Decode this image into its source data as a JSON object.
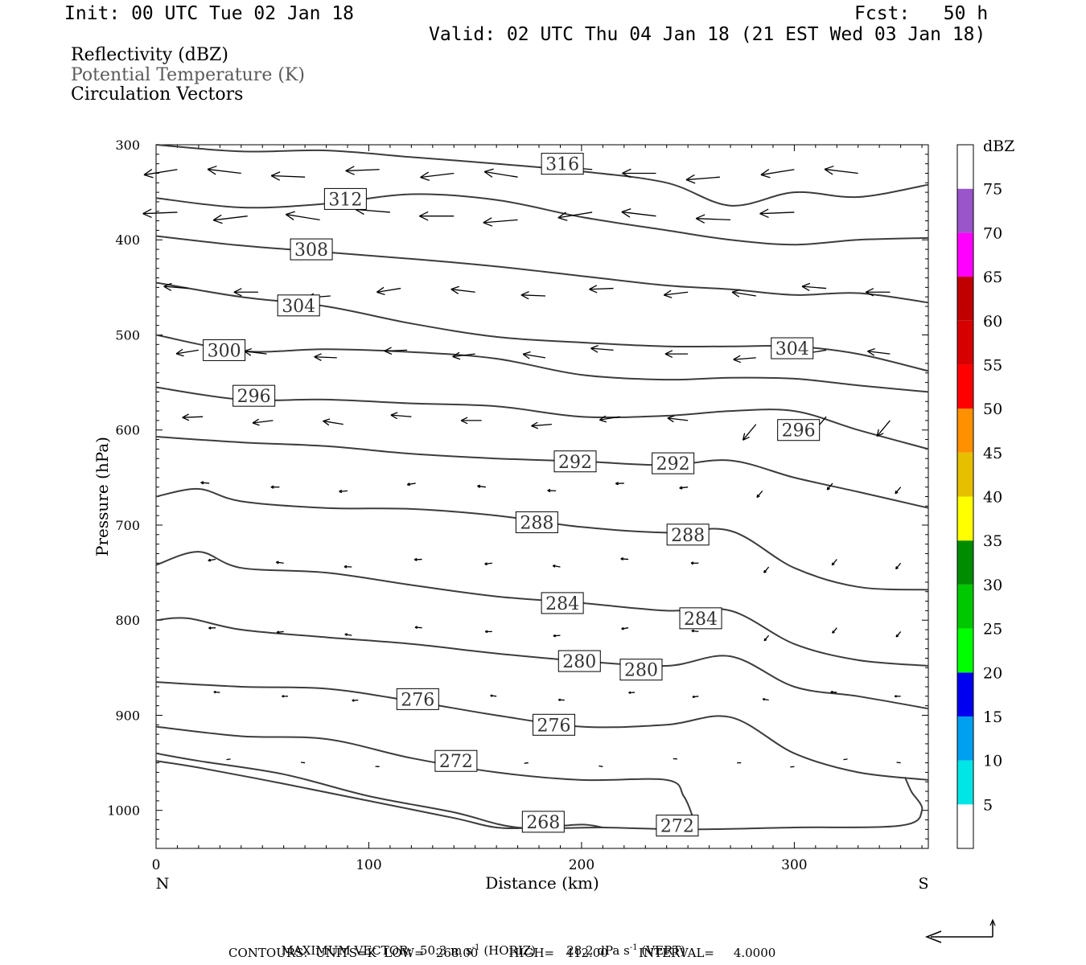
{
  "header": {
    "init": "Init: 00 UTC Tue 02 Jan 18",
    "fcst": "Fcst:   50 h",
    "valid": "Valid: 02 UTC Thu 04 Jan 18 (21 EST Wed 03 Jan 18)"
  },
  "fields": [
    "Reflectivity (dBZ)",
    "Potential Temperature (K)",
    "Circulation Vectors"
  ],
  "colors": {
    "contour": "#3c3c3c",
    "potential_temperature_text": "#5a5a5a"
  },
  "chart_data": {
    "type": "line",
    "xlabel": "Distance (km)",
    "ylabel": "Pressure (hPa)",
    "xlim": [
      0,
      363
    ],
    "ylim": [
      1040,
      300
    ],
    "x_ticks": [
      0,
      100,
      200,
      300
    ],
    "y_ticks": [
      300,
      400,
      500,
      600,
      700,
      800,
      900,
      1000
    ],
    "end_labels": {
      "left": "N",
      "right": "S"
    },
    "grid": false,
    "isentropes": [
      {
        "theta": 316,
        "x": [
          0,
          40,
          80,
          120,
          160,
          200,
          240,
          270,
          300,
          330,
          363
        ],
        "y": [
          300,
          307,
          306,
          313,
          320,
          328,
          340,
          364,
          350,
          355,
          342
        ],
        "labels": [
          {
            "x": 191,
            "y": 320
          }
        ]
      },
      {
        "theta": 312,
        "x": [
          0,
          40,
          80,
          120,
          160,
          200,
          240,
          270,
          300,
          330,
          363
        ],
        "y": [
          356,
          366,
          362,
          352,
          358,
          376,
          390,
          400,
          405,
          400,
          398
        ],
        "labels": [
          {
            "x": 89,
            "y": 357
          }
        ]
      },
      {
        "theta": 308,
        "x": [
          0,
          40,
          80,
          120,
          160,
          200,
          240,
          270,
          300,
          330,
          363
        ],
        "y": [
          396,
          406,
          413,
          420,
          428,
          438,
          448,
          452,
          458,
          456,
          466
        ],
        "labels": [
          {
            "x": 73,
            "y": 410
          }
        ]
      },
      {
        "theta": 304,
        "x": [
          0,
          40,
          80,
          120,
          160,
          200,
          240,
          270,
          300,
          330,
          363
        ],
        "y": [
          445,
          460,
          470,
          488,
          502,
          508,
          512,
          512,
          512,
          520,
          538
        ],
        "labels": [
          {
            "x": 67,
            "y": 469
          },
          {
            "x": 299,
            "y": 514
          }
        ]
      },
      {
        "theta": 300,
        "x": [
          0,
          40,
          80,
          120,
          160,
          200,
          240,
          270,
          300,
          330,
          363
        ],
        "y": [
          500,
          517,
          515,
          518,
          525,
          542,
          547,
          545,
          546,
          553,
          560
        ],
        "labels": [
          {
            "x": 32,
            "y": 516
          }
        ]
      },
      {
        "theta": 296,
        "x": [
          0,
          40,
          80,
          120,
          160,
          200,
          240,
          270,
          300,
          330,
          363
        ],
        "y": [
          555,
          568,
          568,
          572,
          575,
          586,
          585,
          580,
          580,
          600,
          620
        ],
        "labels": [
          {
            "x": 46,
            "y": 564
          },
          {
            "x": 302,
            "y": 600
          }
        ]
      },
      {
        "theta": 292,
        "x": [
          0,
          40,
          80,
          120,
          160,
          200,
          240,
          270,
          300,
          330,
          363
        ],
        "y": [
          607,
          613,
          617,
          625,
          630,
          633,
          637,
          632,
          650,
          665,
          682
        ],
        "labels": [
          {
            "x": 197,
            "y": 633
          },
          {
            "x": 243,
            "y": 635
          }
        ]
      },
      {
        "theta": 288,
        "x": [
          0,
          20,
          40,
          80,
          120,
          160,
          200,
          240,
          270,
          300,
          330,
          363
        ],
        "y": [
          670,
          662,
          675,
          682,
          683,
          690,
          702,
          708,
          706,
          745,
          765,
          768
        ],
        "labels": [
          {
            "x": 179,
            "y": 697
          },
          {
            "x": 250,
            "y": 710
          }
        ]
      },
      {
        "theta": 284,
        "x": [
          0,
          20,
          40,
          80,
          120,
          160,
          200,
          240,
          270,
          300,
          330,
          363
        ],
        "y": [
          742,
          728,
          745,
          750,
          763,
          775,
          782,
          790,
          790,
          825,
          842,
          848
        ],
        "labels": [
          {
            "x": 191,
            "y": 782
          },
          {
            "x": 256,
            "y": 798
          }
        ]
      },
      {
        "theta": 280,
        "x": [
          0,
          15,
          40,
          80,
          120,
          160,
          200,
          240,
          270,
          300,
          330,
          363
        ],
        "y": [
          800,
          798,
          810,
          818,
          825,
          835,
          843,
          848,
          838,
          870,
          880,
          893
        ],
        "labels": [
          {
            "x": 199,
            "y": 843
          },
          {
            "x": 228,
            "y": 852
          }
        ]
      },
      {
        "theta": 276,
        "x": [
          0,
          40,
          80,
          120,
          160,
          200,
          240,
          270,
          300,
          330,
          363
        ],
        "y": [
          865,
          870,
          872,
          885,
          900,
          912,
          910,
          902,
          940,
          960,
          968
        ],
        "labels": [
          {
            "x": 123,
            "y": 883
          },
          {
            "x": 187,
            "y": 910
          }
        ]
      },
      {
        "theta": 272,
        "x": [
          0,
          40,
          80,
          120,
          160,
          200,
          240,
          248,
          252
        ],
        "y": [
          912,
          922,
          925,
          945,
          960,
          968,
          968,
          985,
          1005
        ],
        "labels": [
          {
            "x": 141,
            "y": 948
          }
        ]
      },
      {
        "theta": 272,
        "x": [
          0,
          20,
          60,
          100,
          140,
          170,
          210,
          250,
          300,
          350,
          360,
          355,
          352
        ],
        "y": [
          940,
          948,
          962,
          985,
          1002,
          1018,
          1018,
          1020,
          1018,
          1016,
          1000,
          980,
          965
        ],
        "labels": [
          {
            "x": 245,
            "y": 1016
          }
        ]
      },
      {
        "theta": 268,
        "x": [
          0,
          20,
          60,
          100,
          140,
          160,
          180,
          200,
          210
        ],
        "y": [
          948,
          955,
          972,
          990,
          1008,
          1018,
          1018,
          1015,
          1018
        ],
        "labels": [
          {
            "x": 182,
            "y": 1012
          }
        ]
      }
    ],
    "vectors_note": "Circulation vectors point mostly toward N (left); longest in upper levels (300-420 hPa).",
    "colorbar": {
      "units": "dBZ",
      "levels": [
        5,
        10,
        15,
        20,
        25,
        30,
        35,
        40,
        45,
        50,
        55,
        60,
        65,
        70,
        75
      ],
      "colors": [
        "#ffffff",
        "#00e6e6",
        "#00a0f0",
        "#0000f0",
        "#00ff00",
        "#00c800",
        "#008c00",
        "#ffff00",
        "#e6c000",
        "#ff9000",
        "#ff0000",
        "#d60000",
        "#c00000",
        "#ff00ff",
        "#9955c9",
        "#ffffff"
      ]
    }
  },
  "footer": {
    "max_vector": "MAXIMUM VECTOR:  50.3 m s",
    "horiz": "(HORIZ)",
    "vert_val": "28.2 dPa s",
    "vert": "(VERT)",
    "contours": "CONTOURS:  UNITS=K  LOW=   268.00        HIGH=   412.00        INTERVAL=     4.0000"
  }
}
